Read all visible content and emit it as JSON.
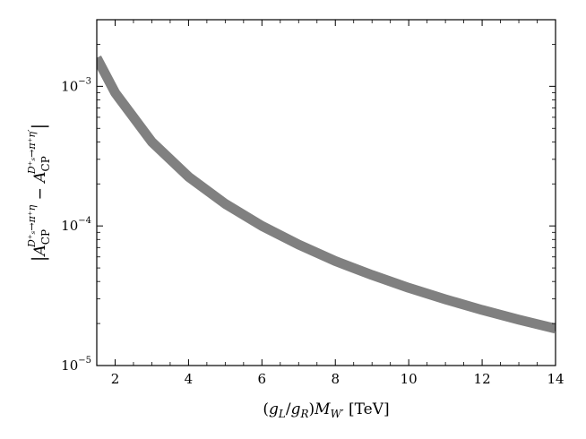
{
  "chart_data": {
    "type": "line",
    "title": "",
    "xlabel": {
      "open": "(",
      "gL": "g",
      "gL_sub": "L",
      "slash": "/",
      "gR": "g",
      "gR_sub": "R",
      "close": ")",
      "M": "M",
      "M_sub": "W′",
      "unit": " [TeV]"
    },
    "ylabel": {
      "bar_left": "|",
      "A1": "A",
      "A1_sub": "CP",
      "A1_sup": "D⁺ₛ→π⁺η",
      "minus": " − ",
      "A2": "A",
      "A2_sub": "CP",
      "A2_sup": "D⁺ₛ→π⁺η′",
      "bar_right": "|"
    },
    "xlim": [
      1.5,
      14
    ],
    "ylim": [
      1e-05,
      0.003
    ],
    "yscale": "log",
    "grid": false,
    "xticks": [
      {
        "value": 2,
        "label": "2"
      },
      {
        "value": 4,
        "label": "4"
      },
      {
        "value": 6,
        "label": "6"
      },
      {
        "value": 8,
        "label": "8"
      },
      {
        "value": 10,
        "label": "10"
      },
      {
        "value": 12,
        "label": "12"
      },
      {
        "value": 14,
        "label": "14"
      }
    ],
    "yticks": [
      {
        "value": 1e-05,
        "base": "10",
        "exp": "−5"
      },
      {
        "value": 0.0001,
        "base": "10",
        "exp": "−4"
      },
      {
        "value": 0.001,
        "base": "10",
        "exp": "−3"
      }
    ],
    "series": [
      {
        "color": "#808080",
        "x": [
          1.5,
          2,
          3,
          4,
          5,
          6,
          7,
          8,
          9,
          10,
          11,
          12,
          13,
          14
        ],
        "y": [
          0.0016,
          0.0009,
          0.0004,
          0.000225,
          0.000144,
          0.0001,
          7.35e-05,
          5.6e-05,
          4.45e-05,
          3.6e-05,
          2.98e-05,
          2.5e-05,
          2.13e-05,
          1.84e-05
        ]
      }
    ]
  }
}
